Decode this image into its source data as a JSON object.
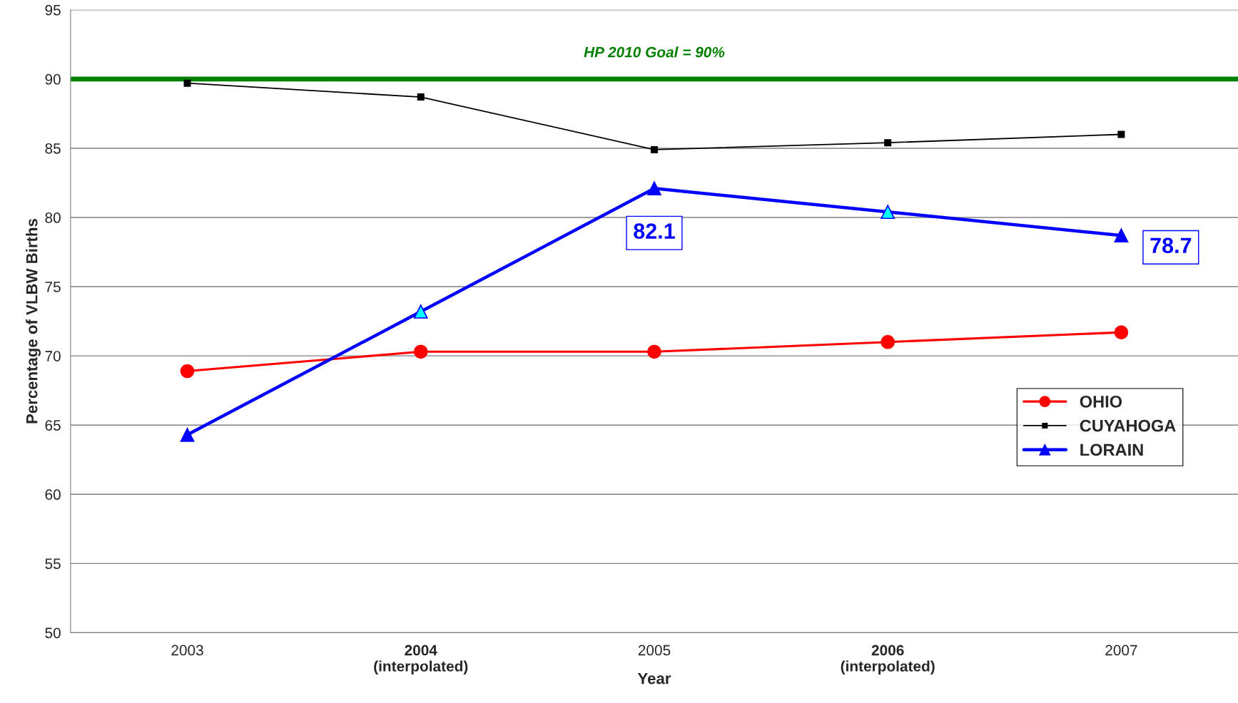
{
  "chart_data": {
    "type": "line",
    "xlabel": "Year",
    "ylabel": "Percentage of VLBW Births",
    "categories": [
      "2003",
      "2004\n(interpolated)",
      "2005",
      "2006\n(interpolated)",
      "2007"
    ],
    "series": [
      {
        "name": "OHIO",
        "color": "#ff0000",
        "marker": "circle",
        "values": [
          68.9,
          70.3,
          70.3,
          71.0,
          71.7
        ]
      },
      {
        "name": "CUYAHOGA",
        "color": "#000000",
        "marker": "square",
        "values": [
          89.7,
          88.7,
          84.9,
          85.4,
          86.0
        ]
      },
      {
        "name": "LORAIN",
        "color": "#0000ff",
        "marker": "triangle",
        "colors": [
          "#0000ff",
          "#00ffff",
          "#0000ff",
          "#00ffff",
          "#0000ff"
        ],
        "values": [
          64.3,
          73.2,
          82.1,
          80.4,
          78.7
        ],
        "value_labels": [
          null,
          null,
          "82.1",
          null,
          "78.7"
        ]
      }
    ],
    "ylim": [
      50,
      95
    ],
    "yticks": [
      50,
      55,
      60,
      65,
      70,
      75,
      80,
      85,
      90,
      95
    ],
    "grid": "y",
    "legend": "right",
    "ref_lines": [
      {
        "axis": "y",
        "value": 90,
        "label": "HP 2010 Goal = 90%",
        "color": "#008000"
      }
    ]
  }
}
